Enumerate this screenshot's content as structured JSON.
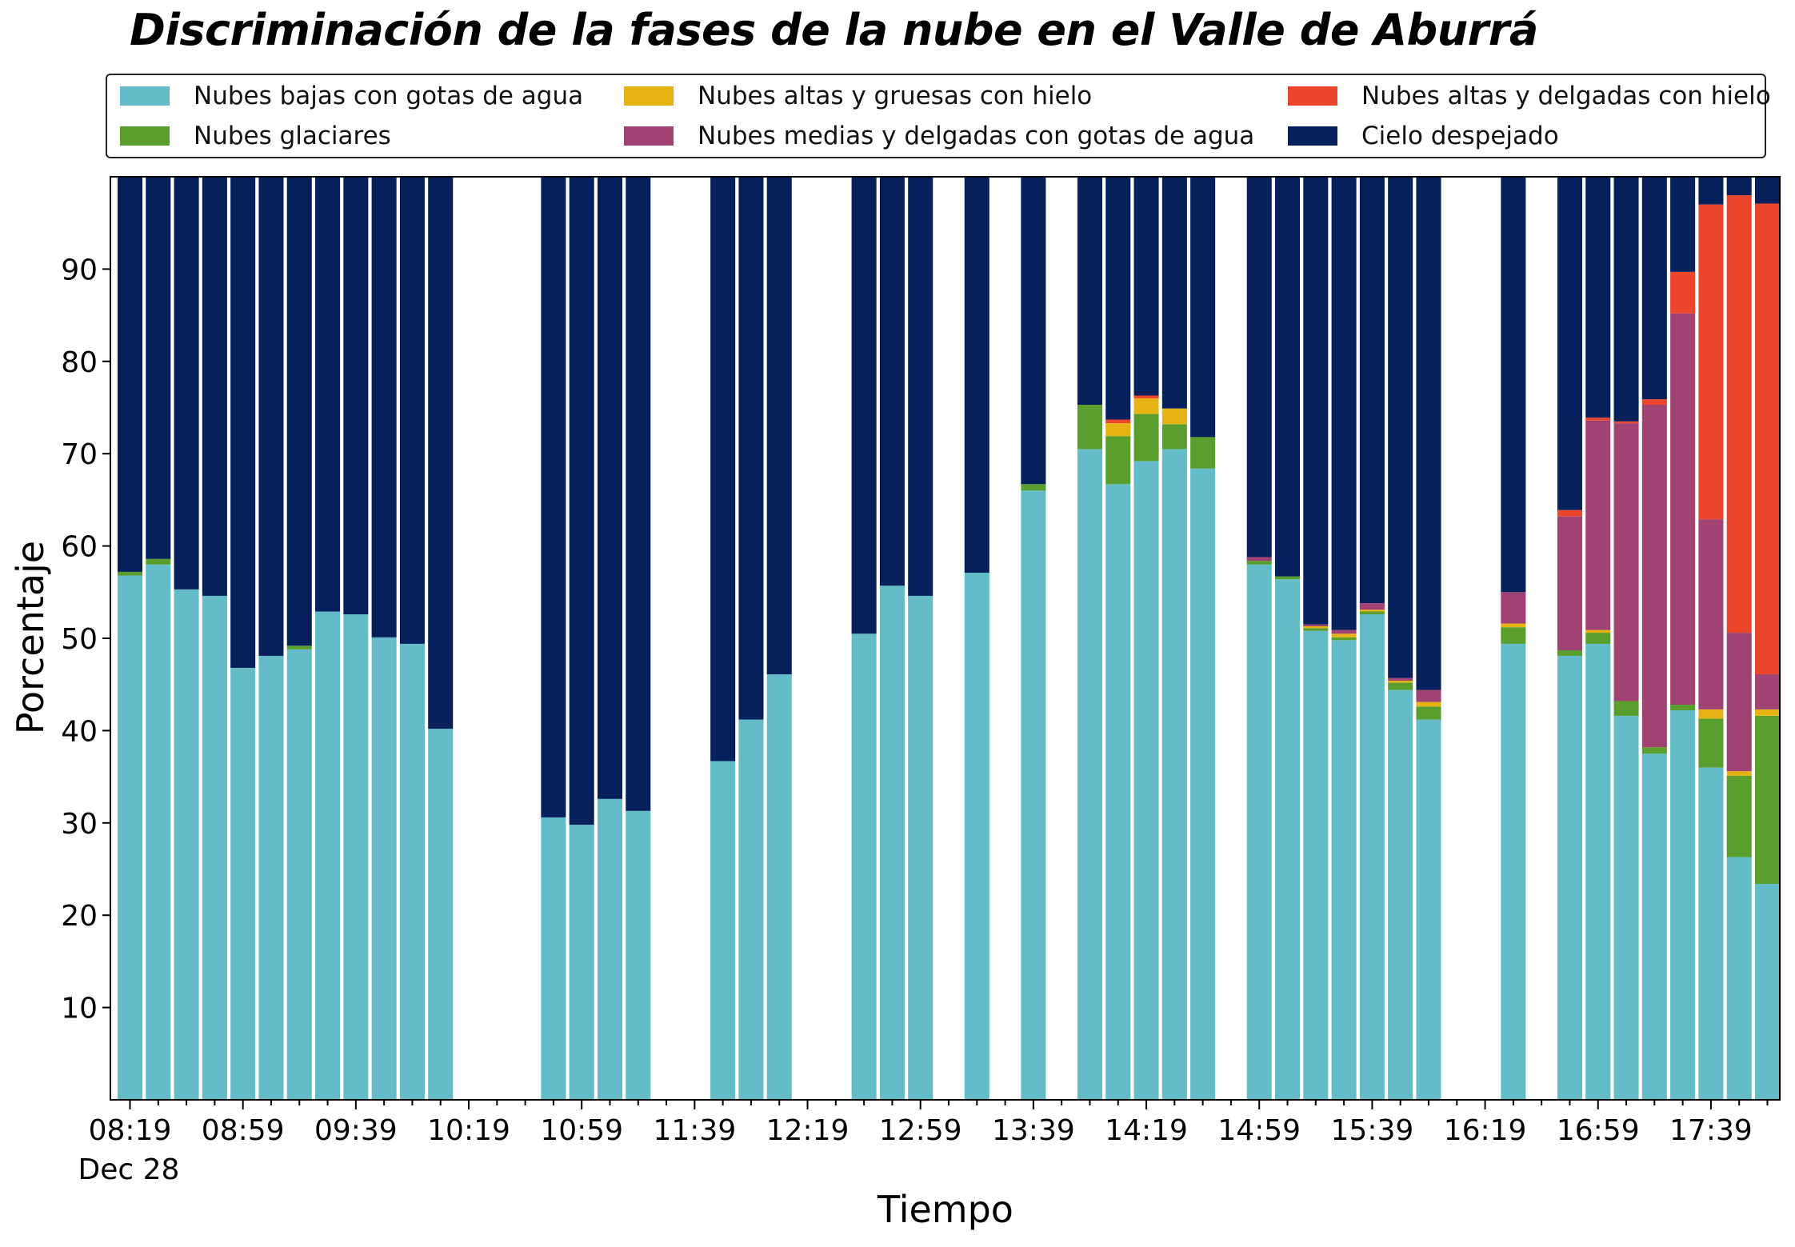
{
  "chart_data": {
    "type": "bar",
    "stacked": true,
    "title": "Discriminación de la fases de la nube en el Valle de Aburrá",
    "xlabel": "Tiempo",
    "ylabel": "Porcentaje",
    "ylim": [
      0,
      100
    ],
    "yticks": [
      10,
      20,
      30,
      40,
      50,
      60,
      70,
      80,
      90
    ],
    "xtick_labels": [
      "08:19",
      "08:59",
      "09:39",
      "10:19",
      "10:59",
      "11:39",
      "12:19",
      "12:59",
      "13:39",
      "14:19",
      "14:59",
      "15:39",
      "16:19",
      "16:59",
      "17:39"
    ],
    "xtick_sublabel": "Dec 28",
    "grid": false,
    "legend_position": "top",
    "legend_columns": 3,
    "x": [
      "08:19",
      "08:29",
      "08:39",
      "08:49",
      "08:59",
      "09:09",
      "09:19",
      "09:29",
      "09:39",
      "09:49",
      "09:59",
      "10:09",
      "10:19",
      "10:29",
      "10:39",
      "10:49",
      "10:59",
      "11:09",
      "11:19",
      "11:29",
      "11:39",
      "11:49",
      "11:59",
      "12:09",
      "12:19",
      "12:29",
      "12:39",
      "12:49",
      "12:59",
      "13:09",
      "13:19",
      "13:29",
      "13:39",
      "13:49",
      "13:59",
      "14:09",
      "14:19",
      "14:29",
      "14:39",
      "14:49",
      "14:59",
      "15:09",
      "15:19",
      "15:29",
      "15:39",
      "15:49",
      "15:59",
      "16:09",
      "16:19",
      "16:29",
      "16:39",
      "16:49",
      "16:59",
      "17:09",
      "17:19",
      "17:29",
      "17:39",
      "17:49",
      "17:59"
    ],
    "series": [
      {
        "name": "Nubes bajas con gotas de agua",
        "color": "#64bcc8",
        "values": [
          56.8,
          58.0,
          55.3,
          54.6,
          46.8,
          48.1,
          48.8,
          52.9,
          52.6,
          50.1,
          49.4,
          40.2,
          0,
          0,
          0,
          30.6,
          29.8,
          32.6,
          31.3,
          0,
          0,
          36.7,
          41.2,
          46.1,
          0,
          0,
          50.5,
          55.7,
          54.6,
          0,
          57.1,
          0,
          66.0,
          0,
          70.5,
          66.7,
          69.2,
          70.5,
          68.4,
          0,
          58.0,
          56.4,
          50.8,
          49.8,
          52.6,
          44.4,
          41.2,
          0,
          0,
          49.4,
          0,
          48.1,
          49.4,
          41.6,
          37.5,
          42.2,
          36.0,
          26.3,
          23.4
        ]
      },
      {
        "name": "Nubes glaciares",
        "color": "#5a9e2d",
        "values": [
          0.4,
          0.6,
          0,
          0,
          0,
          0,
          0.4,
          0,
          0,
          0,
          0,
          0,
          0,
          0,
          0,
          0,
          0,
          0,
          0,
          0,
          0,
          0,
          0,
          0,
          0,
          0,
          0,
          0,
          0,
          0,
          0,
          0,
          0.7,
          0,
          4.8,
          5.2,
          5.1,
          2.7,
          3.4,
          0,
          0.4,
          0.3,
          0.3,
          0.3,
          0.3,
          0.8,
          1.4,
          0,
          0,
          1.8,
          0,
          0.6,
          1.2,
          1.6,
          0.7,
          0.6,
          5.3,
          8.8,
          18.2
        ]
      },
      {
        "name": "Nubes altas y gruesas con hielo",
        "color": "#e5b414",
        "values": [
          0,
          0,
          0,
          0,
          0,
          0,
          0,
          0,
          0,
          0,
          0,
          0,
          0,
          0,
          0,
          0,
          0,
          0,
          0,
          0,
          0,
          0,
          0,
          0,
          0,
          0,
          0,
          0,
          0,
          0,
          0,
          0,
          0,
          0,
          0,
          1.4,
          1.7,
          1.7,
          0,
          0,
          0,
          0,
          0.2,
          0.4,
          0.2,
          0.2,
          0.5,
          0,
          0,
          0.4,
          0,
          0,
          0.3,
          0,
          0,
          0,
          1.0,
          0.5,
          0.7
        ]
      },
      {
        "name": "Nubes medias y delgadas con gotas de agua",
        "color": "#a04272",
        "values": [
          0,
          0,
          0,
          0,
          0,
          0,
          0,
          0,
          0,
          0,
          0,
          0,
          0,
          0,
          0,
          0,
          0,
          0,
          0,
          0,
          0,
          0,
          0,
          0,
          0,
          0,
          0,
          0,
          0,
          0,
          0,
          0,
          0,
          0,
          0,
          0,
          0,
          0,
          0,
          0,
          0.4,
          0,
          0.2,
          0.4,
          0.7,
          0.3,
          1.3,
          0,
          0,
          3.4,
          0,
          14.5,
          22.7,
          30.1,
          37.1,
          42.4,
          20.6,
          15.0,
          3.8
        ]
      },
      {
        "name": "Nubes altas y delgadas con hielo",
        "color": "#eb462c",
        "values": [
          0,
          0,
          0,
          0,
          0,
          0,
          0,
          0,
          0,
          0,
          0,
          0,
          0,
          0,
          0,
          0,
          0,
          0,
          0,
          0,
          0,
          0,
          0,
          0,
          0,
          0,
          0,
          0,
          0,
          0,
          0,
          0,
          0,
          0,
          0,
          0.4,
          0.3,
          0,
          0,
          0,
          0,
          0,
          0,
          0,
          0,
          0,
          0,
          0,
          0,
          0,
          0,
          0.7,
          0.3,
          0.2,
          0.6,
          4.5,
          34.1,
          47.4,
          51.0
        ]
      },
      {
        "name": "Cielo despejado",
        "color": "#06205c",
        "values": [
          42.8,
          41.4,
          44.7,
          45.4,
          53.2,
          51.9,
          50.8,
          47.1,
          47.4,
          49.9,
          50.6,
          59.8,
          0,
          0,
          0,
          69.4,
          70.2,
          67.4,
          68.7,
          0,
          0,
          63.3,
          58.8,
          53.9,
          0,
          0,
          49.5,
          44.3,
          45.4,
          0,
          42.9,
          0,
          33.3,
          0,
          24.7,
          26.3,
          23.7,
          25.1,
          28.2,
          0,
          41.2,
          43.3,
          48.5,
          49.1,
          46.2,
          54.3,
          55.6,
          0,
          0,
          45.0,
          0,
          36.1,
          26.1,
          26.5,
          24.1,
          10.3,
          3.0,
          2.0,
          2.9
        ]
      }
    ]
  }
}
